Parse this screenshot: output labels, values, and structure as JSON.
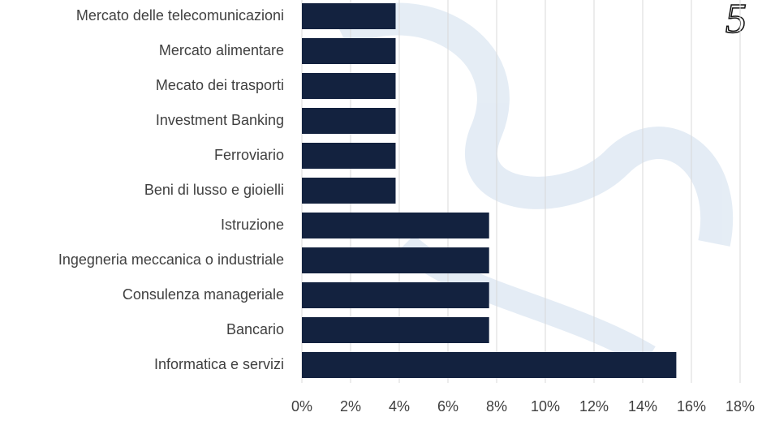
{
  "chart_data": {
    "type": "bar",
    "orientation": "horizontal",
    "page_number": "5",
    "categories": [
      "Mercato delle telecomunicazioni",
      "Mercato alimentare",
      "Mecato dei trasporti",
      "Investment Banking",
      "Ferroviario",
      "Beni di lusso e gioielli",
      "Istruzione",
      "Ingegneria meccanica o industriale",
      "Consulenza manageriale",
      "Bancario",
      "Informatica e servizi"
    ],
    "values": [
      3.85,
      3.85,
      3.85,
      3.85,
      3.85,
      3.85,
      7.69,
      7.69,
      7.69,
      7.69,
      15.38
    ],
    "color": "#13223f",
    "xlim": [
      0,
      18
    ],
    "xticks": [
      {
        "value": 0,
        "label": "0%"
      },
      {
        "value": 2,
        "label": "2%"
      },
      {
        "value": 4,
        "label": "4%"
      },
      {
        "value": 6,
        "label": "6%"
      },
      {
        "value": 8,
        "label": "8%"
      },
      {
        "value": 10,
        "label": "10%"
      },
      {
        "value": 12,
        "label": "12%"
      },
      {
        "value": 14,
        "label": "14%"
      },
      {
        "value": 16,
        "label": "16%"
      },
      {
        "value": 18,
        "label": "18%"
      }
    ],
    "grid": true
  }
}
